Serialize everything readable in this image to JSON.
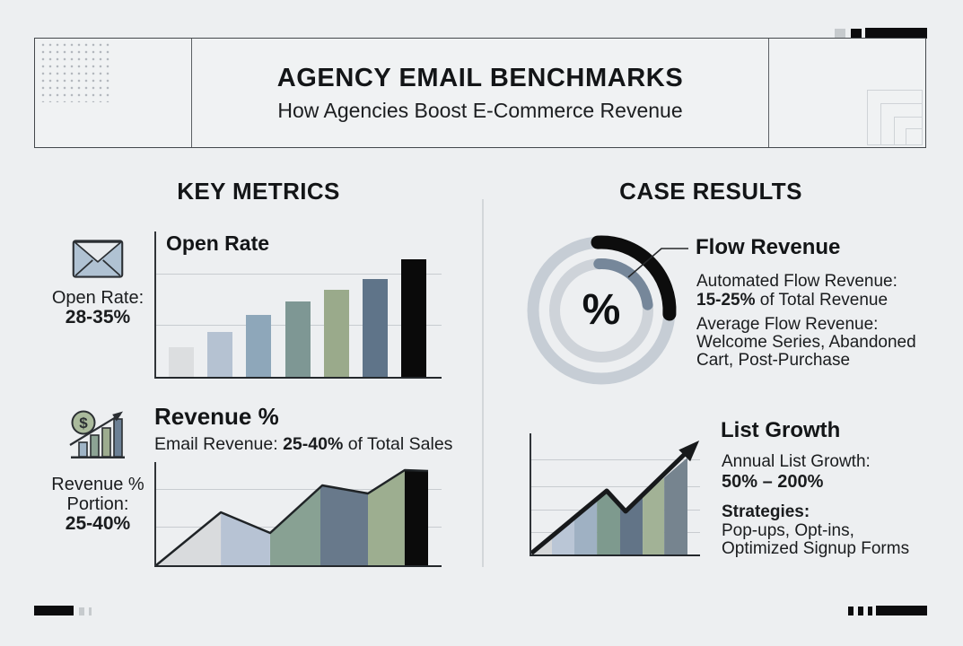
{
  "header": {
    "title": "AGENCY EMAIL BENCHMARKS",
    "subtitle": "How Agencies Boost E-Commerce Revenue"
  },
  "left_column": {
    "heading": "KEY METRICS",
    "open_rate": {
      "icon": "envelope-icon",
      "stat_label": "Open Rate:",
      "stat_value": "28-35%",
      "chart_title": "Open Rate"
    },
    "revenue": {
      "icon": "dollar-growth-icon",
      "dollar_symbol": "$",
      "chart_title": "Revenue %",
      "subtitle_prefix": "Email Revenue: ",
      "subtitle_bold": "25-40%",
      "subtitle_suffix": " of Total Sales",
      "stat_label_line1": "Revenue %",
      "stat_label_line2": "Portion:",
      "stat_value": "25-40%"
    }
  },
  "right_column": {
    "heading": "CASE RESULTS",
    "flow_revenue": {
      "donut_center_symbol": "%",
      "title": "Flow Revenue",
      "line1": "Automated Flow Revenue:",
      "line2_bold": "15-25%",
      "line2_rest": " of Total Revenue",
      "line3": "Average Flow Revenue:",
      "line4": "Welcome Series, Abandoned",
      "line5": "Cart, Post-Purchase"
    },
    "list_growth": {
      "title": "List Growth",
      "line1": "Annual List Growth:",
      "line2": "50% – 200%",
      "line3": "Strategies:",
      "line4": "Pop-ups, Opt-ins,",
      "line5": "Optimized Signup Forms"
    }
  },
  "colors": {
    "background": "#edeff1",
    "ink": "#17191b",
    "panel_border": "#44484c",
    "grid": "#c8ccd0",
    "accent_black": "#0c0c0e",
    "accent_gray": "#c6cacd"
  },
  "chart_data": [
    {
      "id": "open-rate-bars",
      "type": "bar",
      "title": "Open Rate",
      "categories": [
        "1",
        "2",
        "3",
        "4",
        "5",
        "6",
        "7"
      ],
      "values": [
        25,
        38,
        53,
        64,
        74,
        83,
        100
      ],
      "ylim": [
        0,
        100
      ],
      "grid": true,
      "bar_colors": [
        "#dcdee0",
        "#b5c2d2",
        "#8ea7ba",
        "#7e9794",
        "#9aaa8b",
        "#5f7489",
        "#0a0a0a"
      ]
    },
    {
      "id": "revenue-area",
      "type": "area",
      "title": "Revenue %",
      "points": [
        [
          0,
          0
        ],
        [
          0.238,
          0.513
        ],
        [
          0.419,
          0.313
        ],
        [
          0.611,
          0.774
        ],
        [
          0.779,
          0.696
        ],
        [
          0.914,
          0.922
        ],
        [
          1,
          0.913
        ]
      ],
      "bands": [
        {
          "to": 0.238,
          "color": "#d9dbdd"
        },
        {
          "to": 0.419,
          "color": "#b7c3d4"
        },
        {
          "to": 0.604,
          "color": "#88a193"
        },
        {
          "to": 0.779,
          "color": "#68798b"
        },
        {
          "to": 0.914,
          "color": "#9dae90"
        },
        {
          "to": 1,
          "color": "#0b0b0b"
        }
      ],
      "outline_color": "#1f2326",
      "grid": true
    },
    {
      "id": "flow-donut",
      "type": "donut",
      "center_label": "%",
      "rings": [
        {
          "r": 76,
          "track_width": 13,
          "track_color": "#c6cdd5",
          "arc_width": 15,
          "arc_color": "#0d0d0d",
          "start_deg": -3,
          "end_deg": 93
        },
        {
          "r": 52,
          "track_width": 12,
          "track_color": "#ced3d9",
          "arc_width": 12,
          "arc_color": "#76879a",
          "start_deg": -3,
          "end_deg": 83
        }
      ]
    },
    {
      "id": "list-growth-area",
      "type": "area",
      "title": "List Growth",
      "points": [
        [
          0,
          0.01
        ],
        [
          0.483,
          0.526
        ],
        [
          0.603,
          0.356
        ],
        [
          1,
          0.8
        ]
      ],
      "bands": [
        {
          "to": 0.132,
          "color": "#d4d6d8"
        },
        {
          "to": 0.276,
          "color": "#bac6d6"
        },
        {
          "to": 0.42,
          "color": "#9fb1c3"
        },
        {
          "to": 0.569,
          "color": "#7e9a8e"
        },
        {
          "to": 0.713,
          "color": "#627487"
        },
        {
          "to": 0.851,
          "color": "#a2b296"
        },
        {
          "to": 1,
          "color": "#76848f"
        }
      ],
      "trend": {
        "points": [
          [
            0,
            0.01
          ],
          [
            0.447,
            0.526
          ],
          [
            0.559,
            0.356
          ],
          [
            0.915,
            0.837
          ]
        ],
        "arrow": [
          [
            0.995,
            0.941
          ],
          [
            0.942,
            0.769
          ],
          [
            0.874,
            0.864
          ]
        ],
        "color": "#17191b",
        "width": 5
      },
      "grid": true
    }
  ]
}
